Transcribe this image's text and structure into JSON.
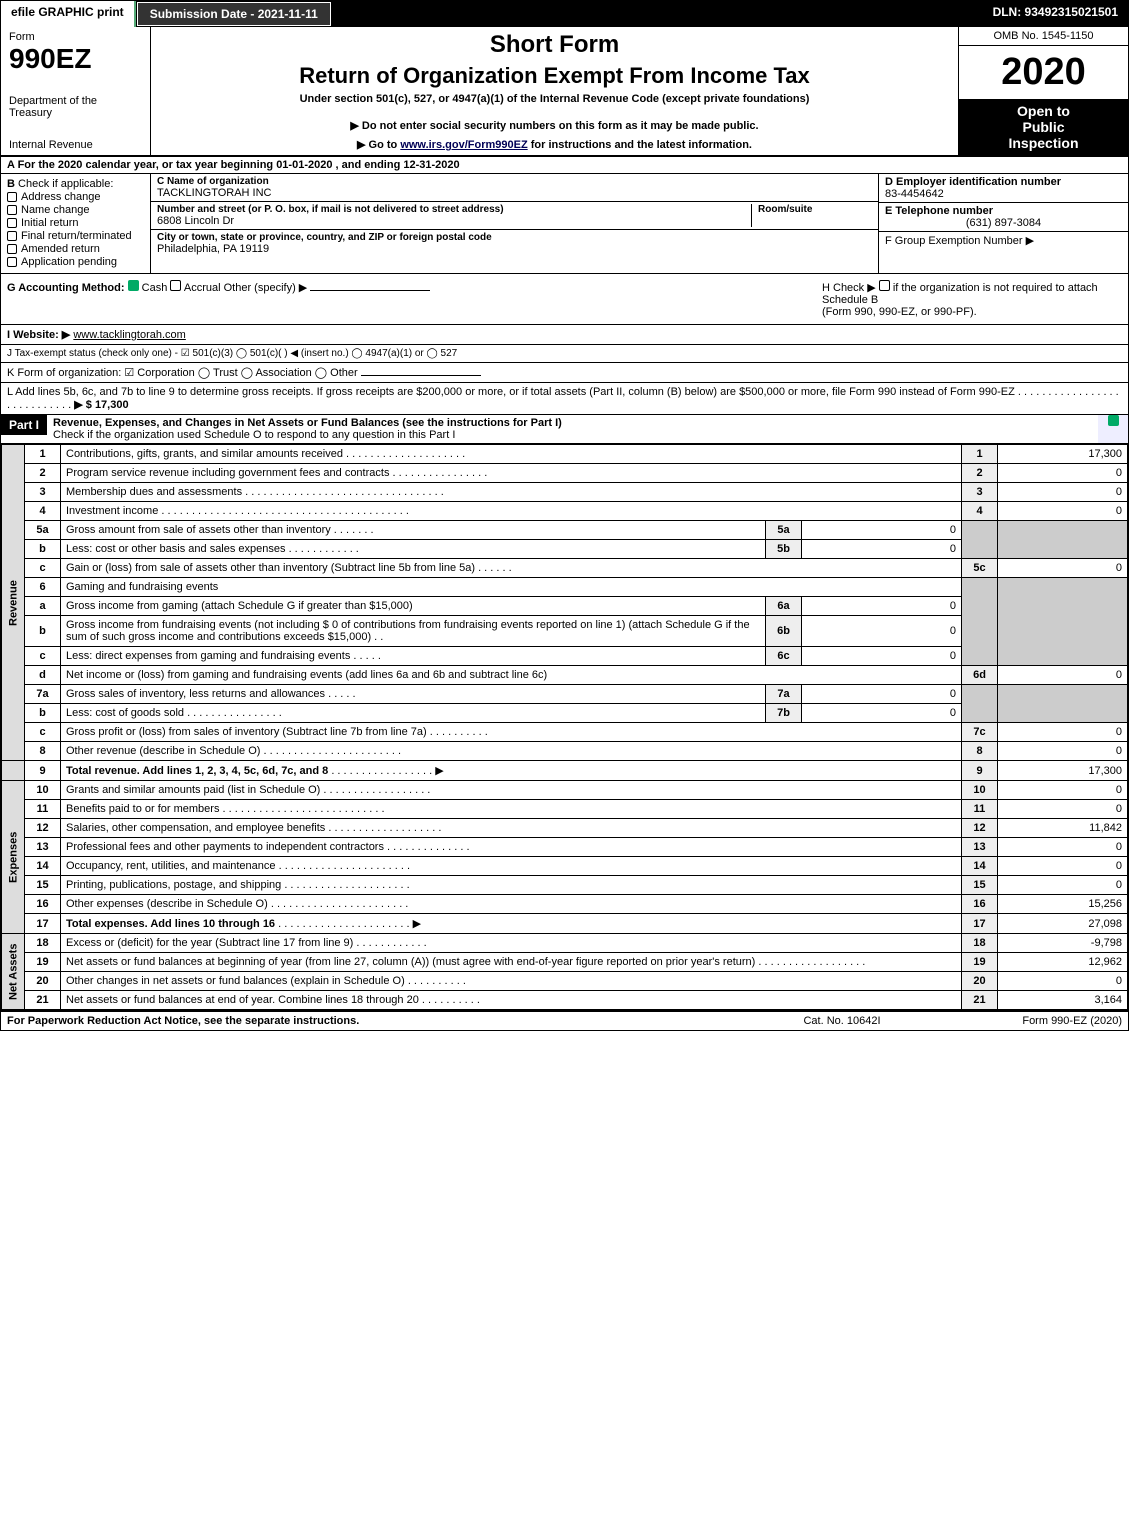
{
  "topbar": {
    "print": "efile GRAPHIC print",
    "submission": "Submission Date - 2021-11-11",
    "dln": "DLN: 93492315021501"
  },
  "header": {
    "form_label": "Form",
    "form_number": "990EZ",
    "dept1": "Department of the Treasury",
    "dept2": "Internal Revenue",
    "short_form": "Short Form",
    "title": "Return of Organization Exempt From Income Tax",
    "under": "Under section 501(c), 527, or 4947(a)(1) of the Internal Revenue Code (except private foundations)",
    "warn": "▶ Do not enter social security numbers on this form as it may be made public.",
    "goto_pre": "▶ Go to ",
    "goto_link": "www.irs.gov/Form990EZ",
    "goto_post": " for instructions and the latest information.",
    "omb": "OMB No. 1545-1150",
    "year": "2020",
    "inspect1": "Open to",
    "inspect2": "Public",
    "inspect3": "Inspection"
  },
  "rowA": "A For the 2020 calendar year, or tax year beginning 01-01-2020 , and ending 12-31-2020",
  "B": {
    "hdr": "B",
    "label": "Check if applicable:",
    "opts": [
      "Address change",
      "Name change",
      "Initial return",
      "Final return/terminated",
      "Amended return",
      "Application pending"
    ]
  },
  "C": {
    "name_lbl": "C Name of organization",
    "name": "TACKLINGTORAH INC",
    "street_lbl": "Number and street (or P. O. box, if mail is not delivered to street address)",
    "street": "6808 Lincoln Dr",
    "room_lbl": "Room/suite",
    "city_lbl": "City or town, state or province, country, and ZIP or foreign postal code",
    "city": "Philadelphia, PA  19119"
  },
  "D": {
    "ein_lbl": "D Employer identification number",
    "ein": "83-4454642",
    "phone_lbl": "E Telephone number",
    "phone": "(631) 897-3084",
    "group_lbl": "F Group Exemption Number  ▶"
  },
  "G": {
    "label": "G Accounting Method:",
    "cash": "Cash",
    "accrual": "Accrual",
    "other": "Other (specify) ▶"
  },
  "H": {
    "text1": "H  Check ▶",
    "text2": "if the organization is not required to attach Schedule B",
    "text3": "(Form 990, 990-EZ, or 990-PF)."
  },
  "I": {
    "label": "I Website: ▶",
    "value": "www.tacklingtorah.com"
  },
  "J": {
    "label": "J Tax-exempt status (check only one) - ☑ 501(c)(3) ◯ 501(c)( ) ◀ (insert no.) ◯ 4947(a)(1) or ◯ 527"
  },
  "K": {
    "label": "K Form of organization:  ☑ Corporation  ◯ Trust  ◯ Association  ◯ Other"
  },
  "L": {
    "text": "L Add lines 5b, 6c, and 7b to line 9 to determine gross receipts. If gross receipts are $200,000 or more, or if total assets (Part II, column (B) below) are $500,000 or more, file Form 990 instead of Form 990-EZ",
    "amount": "▶ $ 17,300"
  },
  "partI": {
    "hdr": "Part I",
    "title": "Revenue, Expenses, and Changes in Net Assets or Fund Balances (see the instructions for Part I)",
    "sub": "Check if the organization used Schedule O to respond to any question in this Part I"
  },
  "sidebar": {
    "revenue": "Revenue",
    "expenses": "Expenses",
    "netassets": "Net Assets"
  },
  "lines": {
    "l1": {
      "n": "1",
      "d": "Contributions, gifts, grants, and similar amounts received",
      "num": "1",
      "v": "17,300"
    },
    "l2": {
      "n": "2",
      "d": "Program service revenue including government fees and contracts",
      "num": "2",
      "v": "0"
    },
    "l3": {
      "n": "3",
      "d": "Membership dues and assessments",
      "num": "3",
      "v": "0"
    },
    "l4": {
      "n": "4",
      "d": "Investment income",
      "num": "4",
      "v": "0"
    },
    "l5a": {
      "n": "5a",
      "d": "Gross amount from sale of assets other than inventory",
      "mid": "5a",
      "mv": "0"
    },
    "l5b": {
      "n": "b",
      "d": "Less: cost or other basis and sales expenses",
      "mid": "5b",
      "mv": "0"
    },
    "l5c": {
      "n": "c",
      "d": "Gain or (loss) from sale of assets other than inventory (Subtract line 5b from line 5a)",
      "num": "5c",
      "v": "0"
    },
    "l6": {
      "n": "6",
      "d": "Gaming and fundraising events"
    },
    "l6a": {
      "n": "a",
      "d": "Gross income from gaming (attach Schedule G if greater than $15,000)",
      "mid": "6a",
      "mv": "0"
    },
    "l6b": {
      "n": "b",
      "d": "Gross income from fundraising events (not including $ 0 of contributions from fundraising events reported on line 1) (attach Schedule G if the sum of such gross income and contributions exceeds $15,000)",
      "mid": "6b",
      "mv": "0"
    },
    "l6c": {
      "n": "c",
      "d": "Less: direct expenses from gaming and fundraising events",
      "mid": "6c",
      "mv": "0"
    },
    "l6d": {
      "n": "d",
      "d": "Net income or (loss) from gaming and fundraising events (add lines 6a and 6b and subtract line 6c)",
      "num": "6d",
      "v": "0"
    },
    "l7a": {
      "n": "7a",
      "d": "Gross sales of inventory, less returns and allowances",
      "mid": "7a",
      "mv": "0"
    },
    "l7b": {
      "n": "b",
      "d": "Less: cost of goods sold",
      "mid": "7b",
      "mv": "0"
    },
    "l7c": {
      "n": "c",
      "d": "Gross profit or (loss) from sales of inventory (Subtract line 7b from line 7a)",
      "num": "7c",
      "v": "0"
    },
    "l8": {
      "n": "8",
      "d": "Other revenue (describe in Schedule O)",
      "num": "8",
      "v": "0"
    },
    "l9": {
      "n": "9",
      "d": "Total revenue. Add lines 1, 2, 3, 4, 5c, 6d, 7c, and 8",
      "num": "9",
      "v": "17,300",
      "arrow": true,
      "bold": true
    },
    "l10": {
      "n": "10",
      "d": "Grants and similar amounts paid (list in Schedule O)",
      "num": "10",
      "v": "0"
    },
    "l11": {
      "n": "11",
      "d": "Benefits paid to or for members",
      "num": "11",
      "v": "0"
    },
    "l12": {
      "n": "12",
      "d": "Salaries, other compensation, and employee benefits",
      "num": "12",
      "v": "11,842"
    },
    "l13": {
      "n": "13",
      "d": "Professional fees and other payments to independent contractors",
      "num": "13",
      "v": "0"
    },
    "l14": {
      "n": "14",
      "d": "Occupancy, rent, utilities, and maintenance",
      "num": "14",
      "v": "0"
    },
    "l15": {
      "n": "15",
      "d": "Printing, publications, postage, and shipping",
      "num": "15",
      "v": "0"
    },
    "l16": {
      "n": "16",
      "d": "Other expenses (describe in Schedule O)",
      "num": "16",
      "v": "15,256"
    },
    "l17": {
      "n": "17",
      "d": "Total expenses. Add lines 10 through 16",
      "num": "17",
      "v": "27,098",
      "arrow": true,
      "bold": true
    },
    "l18": {
      "n": "18",
      "d": "Excess or (deficit) for the year (Subtract line 17 from line 9)",
      "num": "18",
      "v": "-9,798"
    },
    "l19": {
      "n": "19",
      "d": "Net assets or fund balances at beginning of year (from line 27, column (A)) (must agree with end-of-year figure reported on prior year's return)",
      "num": "19",
      "v": "12,962"
    },
    "l20": {
      "n": "20",
      "d": "Other changes in net assets or fund balances (explain in Schedule O)",
      "num": "20",
      "v": "0"
    },
    "l21": {
      "n": "21",
      "d": "Net assets or fund balances at end of year. Combine lines 18 through 20",
      "num": "21",
      "v": "3,164"
    }
  },
  "footer": {
    "left": "For Paperwork Reduction Act Notice, see the separate instructions.",
    "mid": "Cat. No. 10642I",
    "right": "Form 990-EZ (2020)"
  }
}
